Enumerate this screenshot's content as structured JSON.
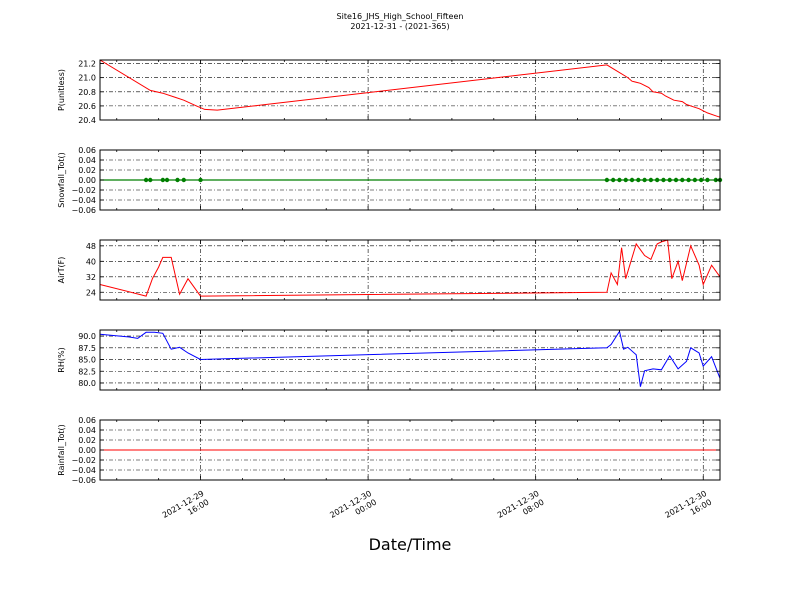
{
  "title": "Site16_JHS_High_School_Fifteen",
  "subtitle": "2021-12-31 - (2021-365)",
  "xlabel": "Date/Time",
  "x_ticks": [
    {
      "t": 16,
      "line1": "2021-12-29",
      "line2": "16:00"
    },
    {
      "t": 24,
      "line1": "2021-12-30",
      "line2": "00:00"
    },
    {
      "t": 32,
      "line1": "2021-12-30",
      "line2": "08:00"
    },
    {
      "t": 40,
      "line1": "2021-12-30",
      "line2": "16:00"
    }
  ],
  "chart_data": [
    {
      "type": "line",
      "ylabel": "P(unitless)",
      "color": "#ff0000",
      "ylim": [
        20.4,
        21.25
      ],
      "yticks": [
        "21.2",
        "21.0",
        "20.8",
        "20.6",
        "20.4"
      ],
      "ytick_values": [
        21.2,
        21.0,
        20.8,
        20.6,
        20.4
      ],
      "grid": true,
      "x": [
        11.2,
        13.6,
        14.2,
        14.8,
        15.2,
        15.8,
        16.2,
        16.8,
        35.4,
        36.4,
        36.6,
        37.0,
        37.4,
        37.6,
        38.0,
        38.2,
        38.6,
        39.0,
        39.2,
        39.6,
        39.8,
        40.2,
        40.6,
        40.8
      ],
      "y": [
        21.25,
        20.82,
        20.78,
        20.72,
        20.68,
        20.6,
        20.55,
        20.54,
        21.18,
        21.0,
        20.95,
        20.92,
        20.86,
        20.8,
        20.78,
        20.74,
        20.68,
        20.66,
        20.62,
        20.58,
        20.56,
        20.5,
        20.46,
        20.44
      ]
    },
    {
      "type": "scatter",
      "ylabel": "Snowfall_Tot()",
      "color": "#007f00",
      "ylim": [
        -0.06,
        0.06
      ],
      "yticks": [
        "0.06",
        "0.04",
        "0.02",
        "0.00",
        "−0.02",
        "−0.04",
        "−0.06"
      ],
      "ytick_values": [
        0.06,
        0.04,
        0.02,
        0.0,
        -0.02,
        -0.04,
        -0.06
      ],
      "grid": true,
      "baseline": 0.0,
      "x": [
        13.4,
        13.6,
        14.2,
        14.4,
        14.9,
        15.2,
        16.0,
        35.4,
        35.7,
        36.0,
        36.3,
        36.6,
        36.9,
        37.2,
        37.5,
        37.8,
        38.1,
        38.4,
        38.7,
        39.0,
        39.3,
        39.6,
        39.9,
        40.2,
        40.6,
        40.8
      ],
      "y": [
        0,
        0,
        0,
        0,
        0,
        0,
        0,
        0,
        0,
        0,
        0,
        0,
        0,
        0,
        0,
        0,
        0,
        0,
        0,
        0,
        0,
        0,
        0,
        0,
        0,
        0
      ]
    },
    {
      "type": "line",
      "ylabel": "AirT(F)",
      "color": "#ff0000",
      "ylim": [
        20,
        51
      ],
      "yticks": [
        "48",
        "40",
        "32",
        "24"
      ],
      "ytick_values": [
        48,
        40,
        32,
        24
      ],
      "grid": true,
      "x": [
        11.2,
        13.4,
        13.7,
        14.0,
        14.2,
        14.6,
        15.0,
        15.4,
        16.0,
        35.4,
        35.6,
        35.9,
        36.1,
        36.3,
        36.8,
        37.2,
        37.5,
        37.8,
        38.0,
        38.3,
        38.5,
        38.8,
        39.0,
        39.4,
        39.8,
        40.0,
        40.4,
        40.8
      ],
      "y": [
        28,
        22,
        31,
        37,
        42,
        42,
        23,
        31,
        22,
        24,
        34,
        28,
        47,
        31,
        49,
        43,
        41,
        49,
        50,
        51,
        31,
        40,
        30,
        48,
        38,
        28,
        38,
        32
      ]
    },
    {
      "type": "line",
      "ylabel": "RH(%)",
      "color": "#0000ff",
      "ylim": [
        78.5,
        91.3
      ],
      "yticks": [
        "90.0",
        "87.5",
        "85.0",
        "82.5",
        "80.0"
      ],
      "ytick_values": [
        90.0,
        87.5,
        85.0,
        82.5,
        80.0
      ],
      "grid": true,
      "x": [
        11.2,
        12.6,
        13.0,
        13.4,
        13.8,
        14.2,
        14.6,
        15.0,
        15.4,
        16.0,
        35.4,
        35.6,
        36.0,
        36.2,
        36.4,
        36.8,
        37.0,
        37.2,
        37.6,
        38.0,
        38.4,
        38.8,
        39.2,
        39.4,
        39.8,
        40.0,
        40.4,
        40.8
      ],
      "y": [
        90.4,
        89.8,
        89.5,
        90.8,
        90.8,
        90.6,
        87.2,
        87.6,
        86.4,
        85.0,
        87.5,
        88.2,
        91.0,
        87.2,
        87.6,
        86.0,
        79.2,
        82.6,
        83.0,
        82.8,
        85.8,
        83.0,
        84.6,
        87.5,
        86.4,
        83.6,
        85.6,
        81.0
      ]
    },
    {
      "type": "line",
      "ylabel": "Rainfall_Tot()",
      "color": "#ff0000",
      "ylim": [
        -0.06,
        0.06
      ],
      "yticks": [
        "0.06",
        "0.04",
        "0.02",
        "0.00",
        "−0.02",
        "−0.04",
        "−0.06"
      ],
      "ytick_values": [
        0.06,
        0.04,
        0.02,
        0.0,
        -0.02,
        -0.04,
        -0.06
      ],
      "grid": true,
      "x": [
        11.2,
        40.8
      ],
      "y": [
        0,
        0
      ]
    }
  ]
}
